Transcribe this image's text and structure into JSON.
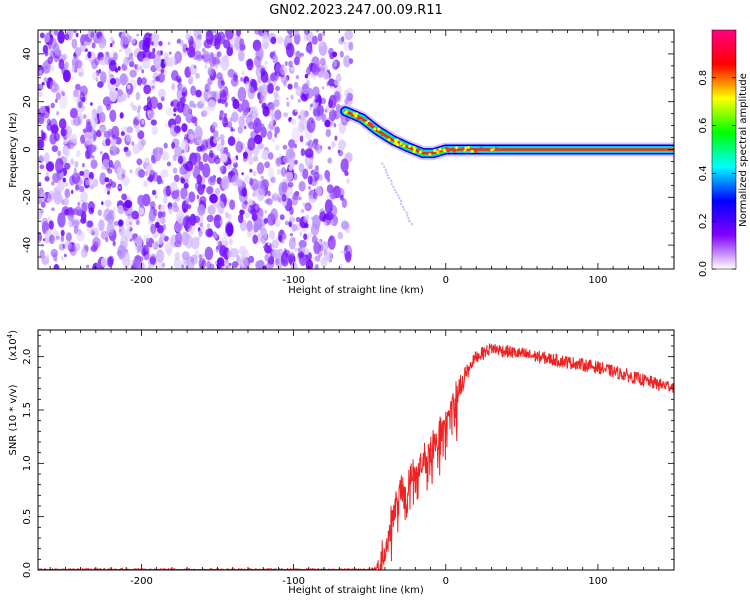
{
  "title": "GN02.2023.247.00.09.R11",
  "chart_data": [
    {
      "type": "heatmap",
      "xlabel": "Height of straight line (km)",
      "ylabel": "Frequency (Hz)",
      "xlim": [
        -268,
        150
      ],
      "ylim": [
        -50,
        50
      ],
      "x_ticks": [
        -200,
        -100,
        0,
        100
      ],
      "x_tick_labels": [
        "-200",
        "-100",
        "0",
        "100"
      ],
      "y_ticks": [
        -40,
        -20,
        0,
        20,
        40
      ],
      "y_tick_labels": [
        "-40",
        "-20",
        "0",
        "20",
        "40"
      ],
      "colorbar": {
        "label": "Normalized spectral amplitude",
        "range": [
          0,
          1
        ],
        "ticks": [
          0,
          0.2,
          0.4,
          0.6,
          0.8
        ],
        "tick_labels": [
          "0.0",
          "0.2",
          "0.4",
          "0.6",
          "0.8"
        ],
        "colors": [
          "#ffffff",
          "#8000ff",
          "#0000ff",
          "#00ffff",
          "#00ff00",
          "#ffff00",
          "#ff0000",
          "#ff0080"
        ]
      },
      "noise_region_x": [
        -268,
        -66
      ],
      "ridge": {
        "x": [
          -66,
          -55,
          -45,
          -35,
          -25,
          -15,
          -8,
          0,
          20,
          50,
          100,
          150
        ],
        "y": [
          16,
          13,
          8,
          4,
          1,
          -1.5,
          -1.5,
          0,
          0,
          0,
          0,
          0
        ]
      },
      "grid": false
    },
    {
      "type": "line",
      "xlabel": "Height of straight line (km)",
      "ylabel": "SNR (10 * v/v)",
      "y_multiplier": "(x10",
      "y_multiplier_exp": "4",
      "y_multiplier_close": ")",
      "xlim": [
        -268,
        150
      ],
      "ylim": [
        0,
        2.25
      ],
      "x_ticks": [
        -200,
        -100,
        0,
        100
      ],
      "x_tick_labels": [
        "-200",
        "-100",
        "0",
        "100"
      ],
      "y_ticks": [
        0,
        0.5,
        1,
        1.5,
        2
      ],
      "y_tick_labels": [
        "0.0",
        "0.5",
        "1.0",
        "1.5",
        "2.0"
      ],
      "line_color": "#ee2222",
      "series_trend": {
        "x": [
          -268,
          -50,
          -45,
          -40,
          -35,
          -30,
          -20,
          -10,
          0,
          10,
          15,
          20,
          30,
          40,
          60,
          80,
          100,
          120,
          140,
          150
        ],
        "y": [
          0,
          0,
          0.02,
          0.2,
          0.55,
          0.75,
          0.95,
          1.15,
          1.4,
          1.7,
          1.9,
          2.0,
          2.08,
          2.05,
          2.0,
          1.95,
          1.9,
          1.82,
          1.74,
          1.72
        ]
      },
      "grid": false
    }
  ]
}
